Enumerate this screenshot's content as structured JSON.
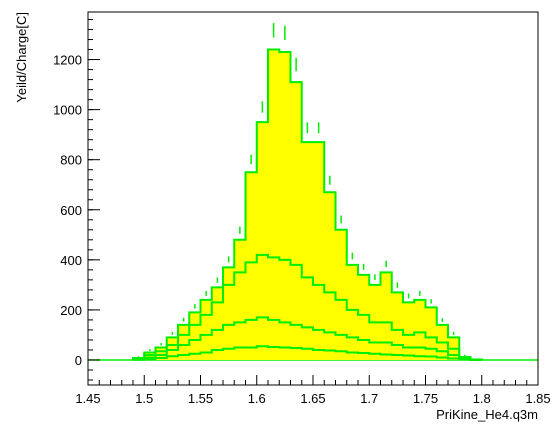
{
  "chart_data": {
    "type": "histogram",
    "xlabel": "PriKine_He4.q3m",
    "ylabel": "Yeild/Charge[C]",
    "xlim": [
      1.45,
      1.85
    ],
    "ylim": [
      -100,
      1390
    ],
    "xticks": [
      "1.45",
      "1.5",
      "1.55",
      "1.6",
      "1.65",
      "1.7",
      "1.75",
      "1.8",
      "1.85"
    ],
    "yticks": [
      "0",
      "200",
      "400",
      "600",
      "800",
      "1000",
      "1200"
    ],
    "xtick_values": [
      1.45,
      1.5,
      1.55,
      1.6,
      1.65,
      1.7,
      1.75,
      1.8,
      1.85
    ],
    "ytick_values": [
      0,
      200,
      400,
      600,
      800,
      1000,
      1200
    ],
    "grid": false,
    "fill_color": "#ffff00",
    "line_color": "#00ee00",
    "bin_edges": [
      1.49,
      1.5,
      1.51,
      1.52,
      1.53,
      1.54,
      1.55,
      1.56,
      1.57,
      1.58,
      1.59,
      1.6,
      1.61,
      1.62,
      1.63,
      1.64,
      1.65,
      1.66,
      1.67,
      1.68,
      1.69,
      1.7,
      1.71,
      1.72,
      1.73,
      1.74,
      1.75,
      1.76,
      1.77,
      1.78,
      1.79,
      1.8
    ],
    "series": [
      {
        "filled": true,
        "values": [
          8,
          30,
          50,
          90,
          140,
          190,
          240,
          290,
          370,
          480,
          750,
          950,
          1240,
          1230,
          1110,
          870,
          870,
          670,
          520,
          380,
          340,
          300,
          350,
          270,
          230,
          240,
          210,
          140,
          90,
          12,
          2
        ],
        "errors": [
          3,
          6,
          8,
          10,
          13,
          15,
          16,
          18,
          20,
          24,
          32,
          38,
          48,
          48,
          44,
          36,
          36,
          30,
          26,
          22,
          20,
          19,
          21,
          18,
          16,
          16,
          15,
          12,
          10,
          4,
          2
        ]
      },
      {
        "filled": false,
        "values": [
          5,
          20,
          35,
          60,
          100,
          140,
          180,
          230,
          300,
          350,
          390,
          420,
          410,
          400,
          380,
          330,
          300,
          270,
          240,
          200,
          180,
          150,
          150,
          120,
          100,
          110,
          90,
          70,
          45,
          10,
          2
        ]
      },
      {
        "filled": false,
        "values": [
          2,
          10,
          20,
          40,
          60,
          80,
          100,
          120,
          140,
          150,
          160,
          170,
          160,
          150,
          140,
          130,
          120,
          110,
          100,
          90,
          80,
          70,
          70,
          60,
          50,
          50,
          45,
          35,
          20,
          5,
          1
        ]
      },
      {
        "filled": false,
        "values": [
          1,
          4,
          8,
          15,
          20,
          25,
          30,
          40,
          45,
          50,
          50,
          55,
          52,
          50,
          48,
          45,
          40,
          38,
          35,
          30,
          28,
          25,
          22,
          20,
          18,
          15,
          14,
          10,
          6,
          2,
          0
        ]
      }
    ]
  }
}
